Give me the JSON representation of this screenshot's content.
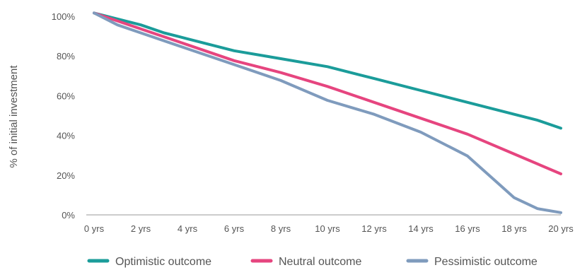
{
  "chart_data": {
    "type": "line",
    "title": "",
    "xlabel": "",
    "ylabel": "% of initial investment",
    "categories": [
      "0 yrs",
      "2 yrs",
      "4 yrs",
      "6 yrs",
      "8 yrs",
      "10 yrs",
      "12 yrs",
      "14 yrs",
      "16 yrs",
      "18 yrs",
      "20 yrs"
    ],
    "x": [
      0,
      1,
      2,
      3,
      4,
      5,
      6,
      7,
      8,
      9,
      9.5,
      10
    ],
    "ylim": [
      0,
      100
    ],
    "yticks": [
      0,
      20,
      40,
      60,
      80,
      100
    ],
    "ytick_labels": [
      "0%",
      "20%",
      "40%",
      "60%",
      "80%",
      "100%"
    ],
    "grid": false,
    "legend_position": "bottom",
    "series": [
      {
        "name": "Optimistic outcome",
        "color": "#1b9c9a",
        "x": [
          0,
          1,
          1.5,
          2,
          3,
          4,
          5,
          6,
          7,
          8,
          9,
          9.5,
          10
        ],
        "values": [
          102,
          96,
          92,
          89,
          83,
          79,
          75,
          69,
          63,
          57,
          51,
          48,
          44
        ]
      },
      {
        "name": "Neutral outcome",
        "color": "#e6457f",
        "x": [
          0,
          1,
          2,
          3,
          4,
          5,
          6,
          7,
          8,
          9,
          10
        ],
        "values": [
          102,
          94,
          86,
          78,
          72,
          65,
          57,
          49,
          41,
          31,
          21
        ]
      },
      {
        "name": "Pessimistic outcome",
        "color": "#7f9bbd",
        "x": [
          0,
          0.5,
          1,
          2,
          3,
          4,
          5,
          6,
          7,
          8,
          9,
          9.5,
          10
        ],
        "values": [
          102,
          96,
          92,
          84,
          76,
          68,
          58,
          51,
          42,
          30,
          9,
          3.5,
          1.5
        ]
      }
    ]
  }
}
